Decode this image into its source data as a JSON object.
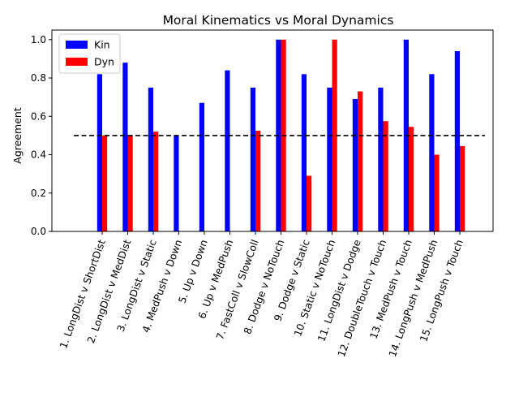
{
  "chart_data": {
    "type": "bar",
    "title": "Moral Kinematics vs Moral Dynamics",
    "xlabel": "",
    "ylabel": "Agreement",
    "ylim": [
      0,
      1.05
    ],
    "yticks": [
      "0.0",
      "0.2",
      "0.4",
      "0.6",
      "0.8",
      "1.0"
    ],
    "grid": false,
    "legend_position": "top-left",
    "categories": [
      "1. LongDist v ShortDist",
      "2. LongDist v MedDist",
      "3. LongDist v Static",
      "4. MedPush v Down",
      "5. Up v Down",
      "6. Up v MedPush",
      "7. FastColl v SlowColl",
      "8. Dodge v NoTouch",
      "9. Dodge v Static",
      "10. Static v NoTouch",
      "11. LongDist v Dodge",
      "12. DoubleTouch v Touch",
      "13. MedPush v Touch",
      "14. LongPush v MedPush",
      "15. LongPush v Touch"
    ],
    "series": [
      {
        "name": "Kin",
        "color": "#0000ff",
        "values": [
          0.82,
          0.88,
          0.75,
          0.5,
          0.67,
          0.84,
          0.75,
          1.0,
          0.82,
          0.75,
          0.69,
          0.75,
          1.0,
          0.82,
          0.94
        ]
      },
      {
        "name": "Dyn",
        "color": "#ff0000",
        "values": [
          0.5,
          0.5,
          0.52,
          0.0,
          0.0,
          0.0,
          0.525,
          1.0,
          0.29,
          1.0,
          0.73,
          0.575,
          0.545,
          0.4,
          0.445
        ]
      }
    ],
    "reference_line": {
      "value": 0.5,
      "style": "dashed",
      "color": "#000000"
    }
  }
}
